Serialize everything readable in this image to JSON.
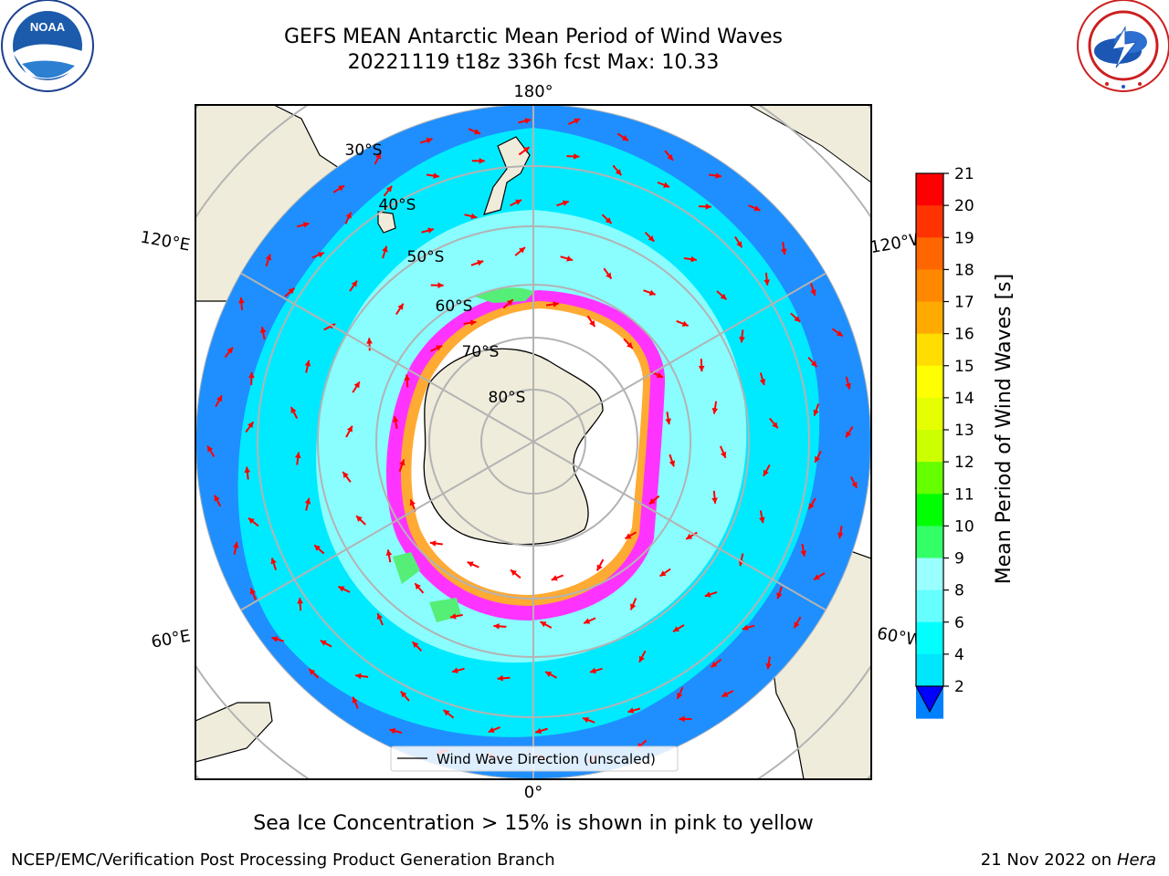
{
  "header": {
    "title_line1": "GEFS MEAN Antarctic Mean Period of Wind Waves",
    "title_line2": "20221119 t18z 336h fcst   Max: 10.33"
  },
  "logos": {
    "noaa_text": "NOAA",
    "noaa_ring": "NATIONAL OCEANIC AND ATMOSPHERIC ADMINISTRATION · U.S. DEPARTMENT OF COMMERCE",
    "nws_ring": "NATIONAL WEATHER SERVICE"
  },
  "map": {
    "projection": "south-polar-stereographic",
    "lon_labels": {
      "top": "180°",
      "bottom": "0°",
      "upper_left": "120°E",
      "upper_right": "120°W",
      "lower_left": "60°E",
      "lower_right": "60°W"
    },
    "lat_labels": [
      "30°S",
      "40°S",
      "50°S",
      "60°S",
      "70°S",
      "80°S"
    ],
    "legend_label": "Wind Wave Direction (unscaled)",
    "colors": {
      "land": "#efecdb",
      "ice": "#ffffff",
      "ocean_outer": "#1f8fff",
      "ocean_mid": "#00eaff",
      "ocean_inner": "#99ffff",
      "ice_edge": "#ff33ff",
      "arrow": "#ff0000"
    }
  },
  "colorbar": {
    "label": "Mean Period of Wind Waves [s]",
    "ticks": [
      "21",
      "20",
      "19",
      "18",
      "17",
      "16",
      "15",
      "14",
      "13",
      "12",
      "11",
      "10",
      "9",
      "8",
      "6",
      "4",
      "2"
    ],
    "colors_top_to_bottom": [
      "#ff0000",
      "#ff3300",
      "#ff6600",
      "#ff8800",
      "#ffaa00",
      "#ffdd00",
      "#ffff00",
      "#e6ff00",
      "#ccff00",
      "#66ff00",
      "#00ff00",
      "#33ff66",
      "#99ffff",
      "#66ffff",
      "#00ffff",
      "#00e6ff",
      "#0080ff"
    ],
    "extend_color": "#0000ff"
  },
  "caption": "Sea Ice Concentration > 15% is shown in pink to yellow",
  "footer": {
    "left": "NCEP/EMC/Verification Post Processing Product Generation Branch",
    "right_date": "21 Nov 2022 on",
    "right_host": "Hera"
  }
}
